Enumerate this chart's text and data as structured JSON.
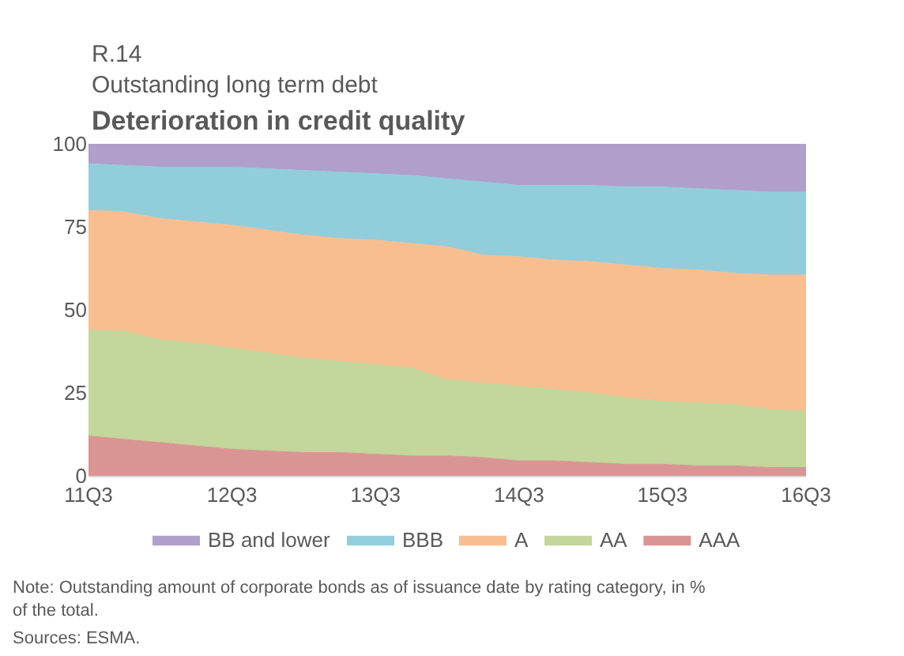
{
  "chart_data": {
    "type": "area",
    "stacked": true,
    "subtitle": "R.14\nOutstanding long term debt",
    "title": "Deterioration in credit quality",
    "categories": [
      "11Q3",
      null,
      null,
      null,
      "12Q3",
      null,
      null,
      null,
      "13Q3",
      null,
      null,
      null,
      "14Q3",
      null,
      null,
      null,
      "15Q3",
      null,
      null,
      null,
      "16Q3"
    ],
    "series": [
      {
        "name": "AAA",
        "color": "#d99594",
        "values": [
          12,
          11,
          10,
          9,
          8,
          7.5,
          7,
          7,
          6.5,
          6,
          6,
          5.5,
          4.5,
          4.5,
          4,
          3.5,
          3.5,
          3,
          3,
          2.5,
          2.5
        ]
      },
      {
        "name": "AA",
        "color": "#c3d69b",
        "values": [
          32,
          32.5,
          31,
          31,
          30.5,
          29.5,
          28.5,
          27.5,
          27,
          26.5,
          23,
          22.5,
          22.5,
          21.5,
          21,
          20,
          19,
          19,
          18.5,
          17.5,
          17
        ]
      },
      {
        "name": "A",
        "color": "#f9be8f",
        "values": [
          36,
          36,
          36.5,
          36.5,
          37,
          37,
          37,
          37,
          37.5,
          37.5,
          40,
          38.5,
          39,
          39,
          39.5,
          40,
          40,
          40,
          39.5,
          40.5,
          41
        ]
      },
      {
        "name": "BBB",
        "color": "#92cddc",
        "values": [
          14,
          14,
          15.5,
          16.5,
          17.5,
          18.5,
          19.5,
          20,
          20,
          20.5,
          20.5,
          22,
          21.5,
          22.5,
          23,
          23.5,
          24.5,
          24.5,
          25,
          25,
          25
        ]
      },
      {
        "name": "BB and lower",
        "color": "#b09fca",
        "values": [
          6,
          6.5,
          7,
          7,
          7,
          7.5,
          8,
          8.5,
          9,
          9.5,
          10.5,
          11.5,
          12.5,
          12.5,
          12.5,
          13,
          13,
          13.5,
          14,
          14.5,
          14.5
        ]
      }
    ],
    "ylim": [
      0,
      100
    ],
    "yticks": [
      0,
      25,
      50,
      75,
      100
    ],
    "legend": "bottom",
    "annotations": [
      "Note: Outstanding amount of corporate bonds as of issuance date by rating category, in % of the total.",
      "Sources: ESMA."
    ]
  }
}
